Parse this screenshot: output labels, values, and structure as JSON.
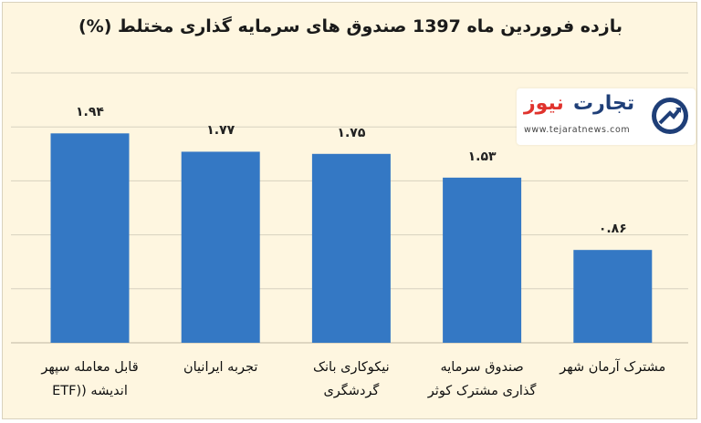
{
  "title": "بازده فروردین ماه 1397 صندوق های سرمایه گذاری مختلط (%)",
  "logo": {
    "wordmark_red": "نیوز",
    "wordmark_blue": "تجارت",
    "url": "www.tejaratnews.com",
    "icon": "arrow-chart-logo-icon"
  },
  "colors": {
    "background": "#fef6e0",
    "bar": "#3478c4",
    "grid": "#d7d1bf"
  },
  "chart_data": {
    "type": "bar",
    "title": "بازده فروردین ماه 1397 صندوق های سرمایه گذاری مختلط (%)",
    "categories": [
      "قابل معامله سپهر\nاندیشه ((ETF",
      "تجربه ایرانیان",
      "نیکوکاری بانک\nگردشگری",
      "صندوق سرمایه\nگذاری مشترک کوثر",
      "مشترک آرمان شهر"
    ],
    "values": [
      1.94,
      1.77,
      1.75,
      1.53,
      0.86
    ],
    "value_labels": [
      "۱.۹۴",
      "۱.۷۷",
      "۱.۷۵",
      "۱.۵۳",
      "۰.۸۶"
    ],
    "ylim": [
      0,
      2.5
    ],
    "grid": true,
    "xlabel": "",
    "ylabel": ""
  }
}
